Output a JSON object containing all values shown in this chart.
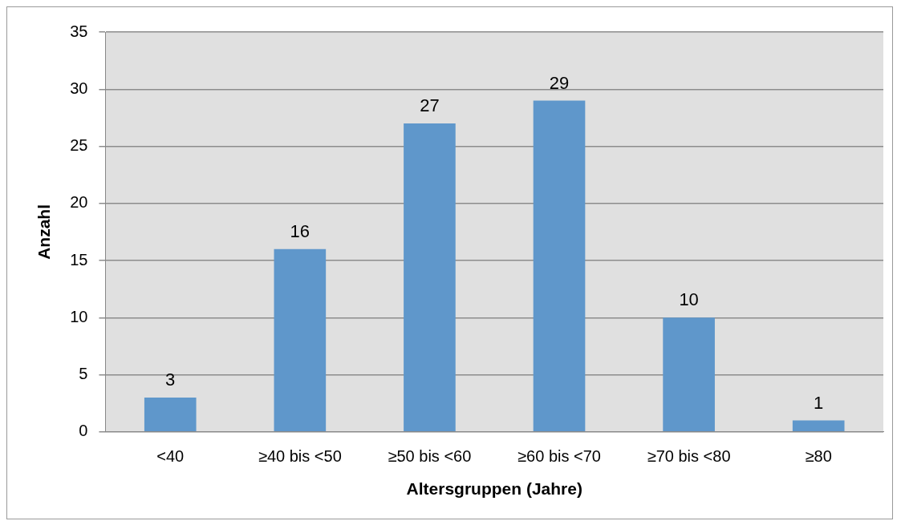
{
  "chart_data": {
    "type": "bar",
    "xlabel": "Altersgruppen (Jahre)",
    "ylabel": "Anzahl",
    "categories": [
      "<40",
      "≥40 bis <50",
      "≥50 bis <60",
      "≥60 bis <70",
      "≥70 bis <80",
      "≥80"
    ],
    "values": [
      3,
      16,
      27,
      29,
      10,
      1
    ],
    "color": "#5f97cb",
    "ylim": [
      0,
      35
    ],
    "yticks": [
      0,
      5,
      10,
      15,
      20,
      25,
      30,
      35
    ],
    "grid": "y",
    "data_labels": true,
    "legend": false
  }
}
